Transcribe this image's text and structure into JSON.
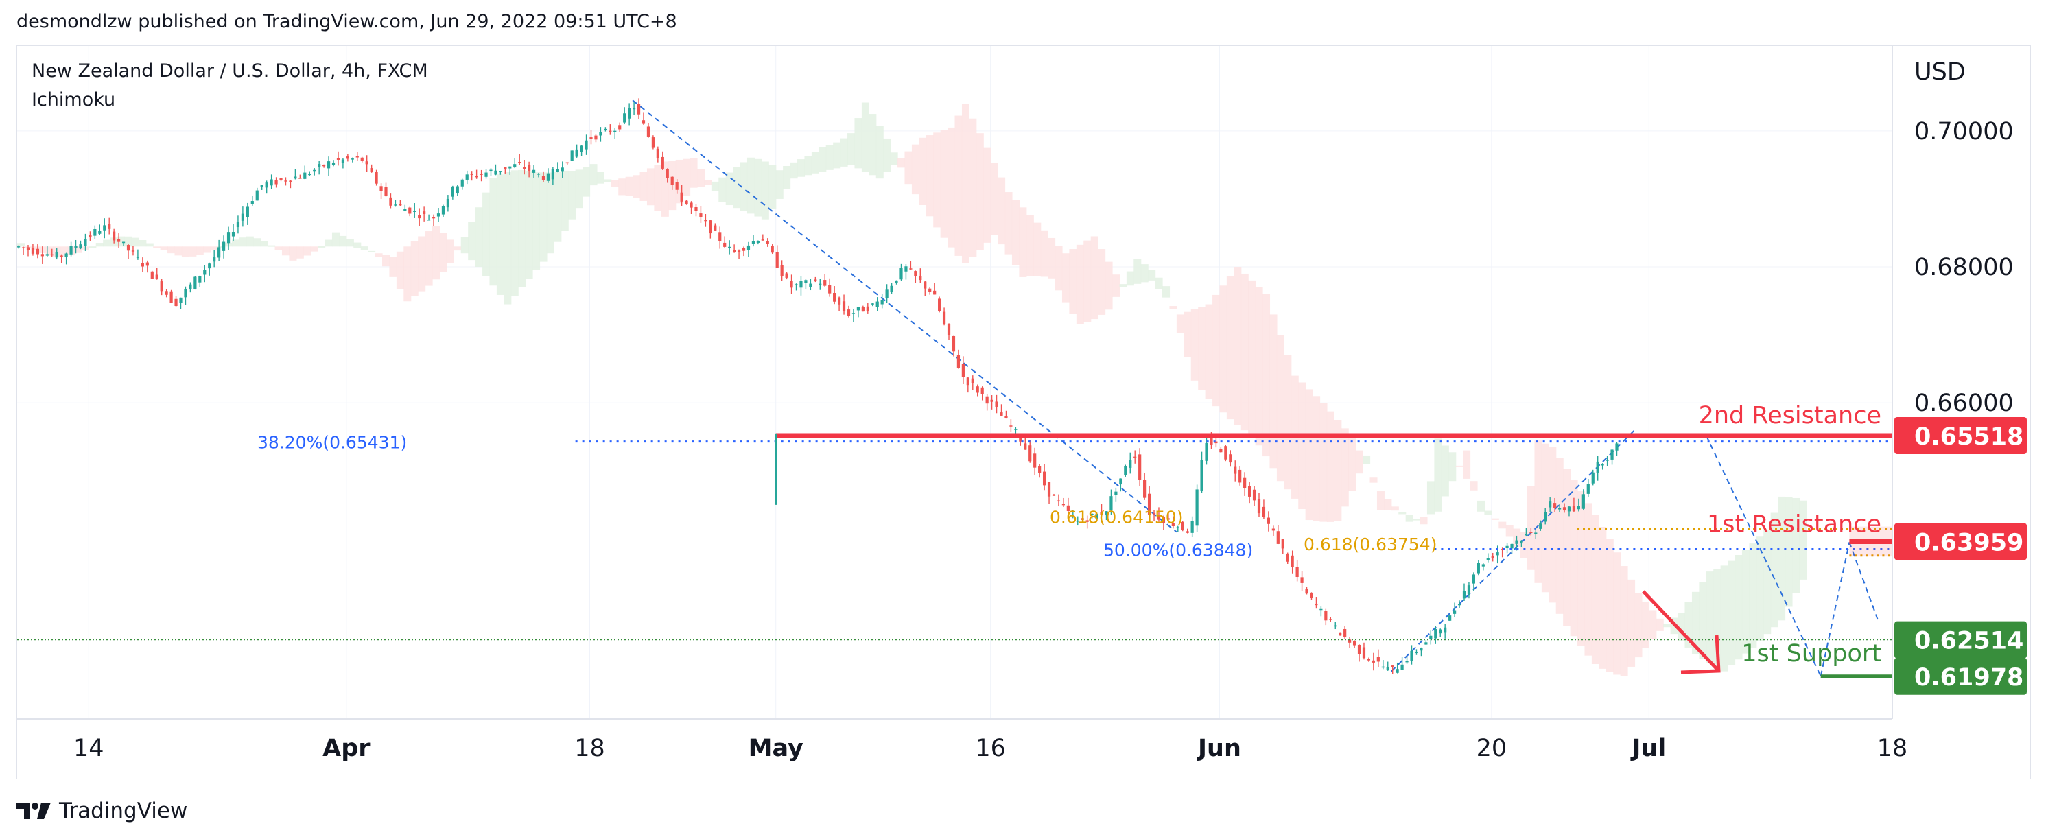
{
  "header": {
    "publisher_line": "desmondlzw published on TradingView.com, Jun 29, 2022 09:51 UTC+8"
  },
  "chart_info": {
    "symbol_line": "New Zealand Dollar / U.S. Dollar, 4h, FXCM",
    "indicator": "Ichimoku"
  },
  "footer": {
    "brand": "TradingView",
    "logo_icon": "tradingview-logo-icon"
  },
  "colors": {
    "background": "#ffffff",
    "grid": "#f0f3fa",
    "border": "#e0e3eb",
    "candle_up": "#26a69a",
    "candle_down": "#ef5350",
    "cloud_bull": "#e3f1e3",
    "cloud_bear": "#fde3e3",
    "resistance": "#f23645",
    "support": "#388e3c",
    "fib_blue": "#2962ff",
    "fib_orange": "#e1a000",
    "trend_dash": "#2a6fdb",
    "arrow": "#f23645"
  },
  "chart_data": {
    "type": "candlestick",
    "title": "New Zealand Dollar / U.S. Dollar, 4h, FXCM",
    "indicator": "Ichimoku",
    "currency": "USD",
    "y_axis": {
      "unit": "USD",
      "ylim": [
        0.6135,
        0.7125
      ],
      "ticks": [
        "0.70000",
        "0.68000",
        "0.66000"
      ],
      "tick_values": [
        0.7,
        0.68,
        0.66
      ]
    },
    "x_axis": {
      "ticks": [
        "14",
        "Apr",
        "18",
        "May",
        "16",
        "Jun",
        "20",
        "Jul",
        "18"
      ],
      "tick_dates": [
        "2022-03-14",
        "2022-04-01",
        "2022-04-18",
        "2022-05-01",
        "2022-05-16",
        "2022-06-01",
        "2022-06-20",
        "2022-07-01",
        "2022-07-18"
      ],
      "bold_ticks": [
        "Apr",
        "May",
        "Jun",
        "Jul"
      ],
      "xlim": [
        "2022-03-09",
        "2022-07-18"
      ]
    },
    "grid": true,
    "price_path": [
      [
        "2022-03-09",
        0.683
      ],
      [
        "2022-03-12",
        0.6815
      ],
      [
        "2022-03-15",
        0.686
      ],
      [
        "2022-03-18",
        0.68
      ],
      [
        "2022-03-20",
        0.6745
      ],
      [
        "2022-03-23",
        0.682
      ],
      [
        "2022-03-26",
        0.692
      ],
      [
        "2022-03-29",
        0.6935
      ],
      [
        "2022-03-31",
        0.6955
      ],
      [
        "2022-04-02",
        0.696
      ],
      [
        "2022-04-04",
        0.6895
      ],
      [
        "2022-04-07",
        0.687
      ],
      [
        "2022-04-09",
        0.693
      ],
      [
        "2022-04-11",
        0.694
      ],
      [
        "2022-04-13",
        0.695
      ],
      [
        "2022-04-15",
        0.693
      ],
      [
        "2022-04-18",
        0.699
      ],
      [
        "2022-04-20",
        0.7005
      ],
      [
        "2022-04-21",
        0.704
      ],
      [
        "2022-04-24",
        0.691
      ],
      [
        "2022-04-26",
        0.6865
      ],
      [
        "2022-04-28",
        0.682
      ],
      [
        "2022-04-30",
        0.6845
      ],
      [
        "2022-05-02",
        0.677
      ],
      [
        "2022-05-04",
        0.678
      ],
      [
        "2022-05-06",
        0.673
      ],
      [
        "2022-05-08",
        0.6745
      ],
      [
        "2022-05-10",
        0.68
      ],
      [
        "2022-05-12",
        0.676
      ],
      [
        "2022-05-14",
        0.664
      ],
      [
        "2022-05-16",
        0.66
      ],
      [
        "2022-05-18",
        0.655
      ],
      [
        "2022-05-20",
        0.647
      ],
      [
        "2022-05-22",
        0.6425
      ],
      [
        "2022-05-24",
        0.644
      ],
      [
        "2022-05-26",
        0.653
      ],
      [
        "2022-05-27",
        0.644
      ],
      [
        "2022-05-29",
        0.642
      ],
      [
        "2022-05-30",
        0.641
      ],
      [
        "2022-05-31",
        0.6545
      ],
      [
        "2022-06-01",
        0.6535
      ],
      [
        "2022-06-03",
        0.647
      ],
      [
        "2022-06-05",
        0.64
      ],
      [
        "2022-06-07",
        0.632
      ],
      [
        "2022-06-09",
        0.627
      ],
      [
        "2022-06-11",
        0.623
      ],
      [
        "2022-06-13",
        0.6205
      ],
      [
        "2022-06-15",
        0.624
      ],
      [
        "2022-06-17",
        0.628
      ],
      [
        "2022-06-19",
        0.636
      ],
      [
        "2022-06-21",
        0.639
      ],
      [
        "2022-06-23",
        0.641
      ],
      [
        "2022-06-24",
        0.645
      ],
      [
        "2022-06-26",
        0.644
      ],
      [
        "2022-06-27",
        0.65
      ],
      [
        "2022-06-29",
        0.654
      ],
      [
        "2022-06-30",
        0.6555
      ],
      [
        "2022-07-01",
        0.654
      ],
      [
        "2022-07-03",
        0.65
      ],
      [
        "2022-07-04",
        0.6555
      ],
      [
        "2022-07-05",
        0.6552
      ],
      [
        "2022-07-06",
        0.651
      ],
      [
        "2022-07-07",
        0.648
      ],
      [
        "2022-07-08",
        0.646
      ],
      [
        "2022-07-09",
        0.642
      ],
      [
        "2022-07-10",
        0.638
      ],
      [
        "2022-07-11",
        0.63
      ],
      [
        "2022-07-12",
        0.624
      ],
      [
        "2022-07-13",
        0.6198
      ],
      [
        "2022-07-14",
        0.628
      ],
      [
        "2022-07-15",
        0.639
      ],
      [
        "2022-07-16",
        0.635
      ],
      [
        "2022-07-17",
        0.628
      ],
      [
        "2022-07-18",
        0.627
      ]
    ],
    "levels": [
      {
        "name": "2nd Resistance",
        "price": 0.65518,
        "label": "0.65518",
        "color": "#f23645",
        "kind": "resistance"
      },
      {
        "name": "1st Resistance",
        "price": 0.63959,
        "label": "0.63959",
        "color": "#f23645",
        "kind": "resistance"
      },
      {
        "name": "1st Support",
        "price": 0.61978,
        "label": "0.61978",
        "color": "#388e3c",
        "kind": "support"
      }
    ],
    "last_price": {
      "price": 0.62514,
      "label": "0.62514",
      "color": "#388e3c"
    },
    "fibonacci": [
      {
        "text": "38.20%(0.65431)",
        "price": 0.65431,
        "color": "#2962ff"
      },
      {
        "text": "50.00%(0.63848)",
        "price": 0.63848,
        "color": "#2962ff"
      },
      {
        "text": "0.618(0.64150)",
        "price": 0.6415,
        "color": "#e1a000"
      },
      {
        "text": "0.618(0.63754)",
        "price": 0.63754,
        "color": "#e1a000"
      }
    ],
    "annotations": {
      "arrow": "down-right arrow pointing toward 1st Support"
    }
  }
}
